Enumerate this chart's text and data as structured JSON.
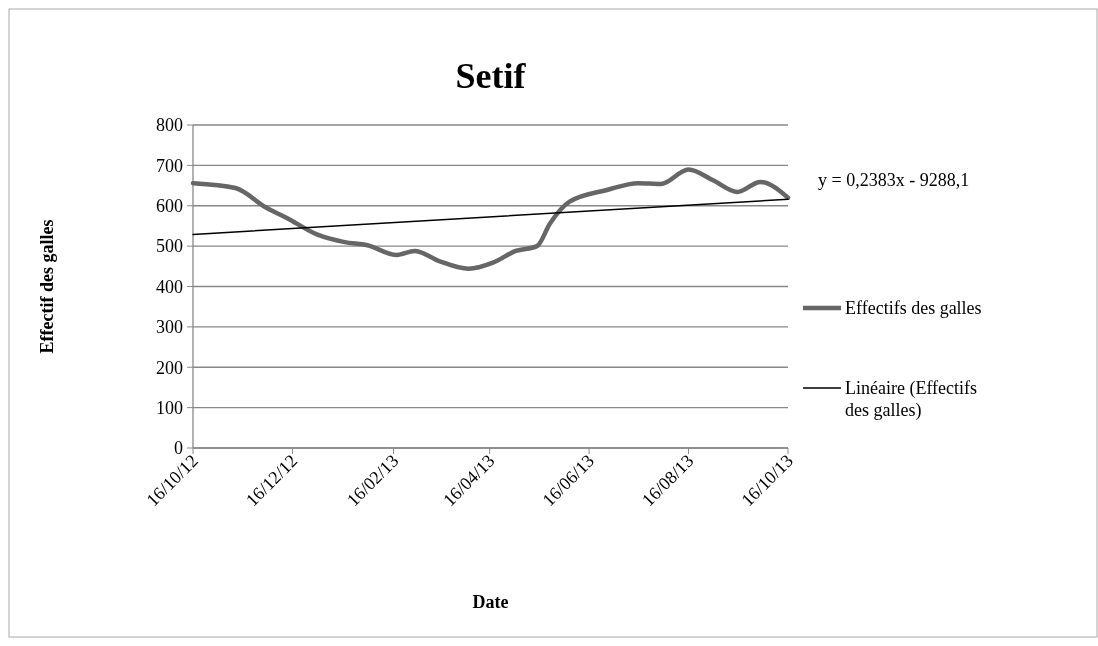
{
  "chart_data": {
    "type": "line",
    "title": "Setif",
    "xlabel": "Date",
    "ylabel": "Effectif des galles",
    "xlim": [
      "2012-10-16",
      "2013-10-16"
    ],
    "xticks": [
      {
        "value": "2012-10-16",
        "label": "16/10/12"
      },
      {
        "value": "2012-12-16",
        "label": "16/12/12"
      },
      {
        "value": "2013-02-16",
        "label": "16/02/13"
      },
      {
        "value": "2013-04-16",
        "label": "16/04/13"
      },
      {
        "value": "2013-06-16",
        "label": "16/06/13"
      },
      {
        "value": "2013-08-16",
        "label": "16/08/13"
      },
      {
        "value": "2013-10-16",
        "label": "16/10/13"
      }
    ],
    "ylim": [
      0,
      800
    ],
    "yticks": [
      0,
      100,
      200,
      300,
      400,
      500,
      600,
      700,
      800
    ],
    "grid": "y",
    "legend": "right",
    "annotations": [
      "y = 0,2383x - 9288,1"
    ],
    "series": [
      {
        "name": "Effectifs des galles",
        "color": "#666666",
        "x": [
          "2012-10-16",
          "2012-11-11",
          "2012-11-30",
          "2012-12-12",
          "2012-12-31",
          "2013-01-17",
          "2013-01-31",
          "2013-02-18",
          "2013-03-01",
          "2013-03-16",
          "2013-04-03",
          "2013-04-18",
          "2013-05-02",
          "2013-05-15",
          "2013-05-23",
          "2013-06-04",
          "2013-06-27",
          "2013-07-16",
          "2013-07-30",
          "2013-08-16",
          "2013-08-31",
          "2013-09-15",
          "2013-09-29",
          "2013-10-16"
        ],
        "values": [
          656,
          644,
          595,
          571,
          529,
          510,
          502,
          478,
          488,
          463,
          444,
          459,
          488,
          500,
          556,
          610,
          639,
          656,
          654,
          690,
          663,
          634,
          659,
          620
        ]
      },
      {
        "name": "Linéaire (Effectifs des galles)",
        "type": "line",
        "color": "#000000",
        "x": [
          "2012-10-16",
          "2013-10-16"
        ],
        "values": [
          529,
          616
        ]
      }
    ]
  }
}
